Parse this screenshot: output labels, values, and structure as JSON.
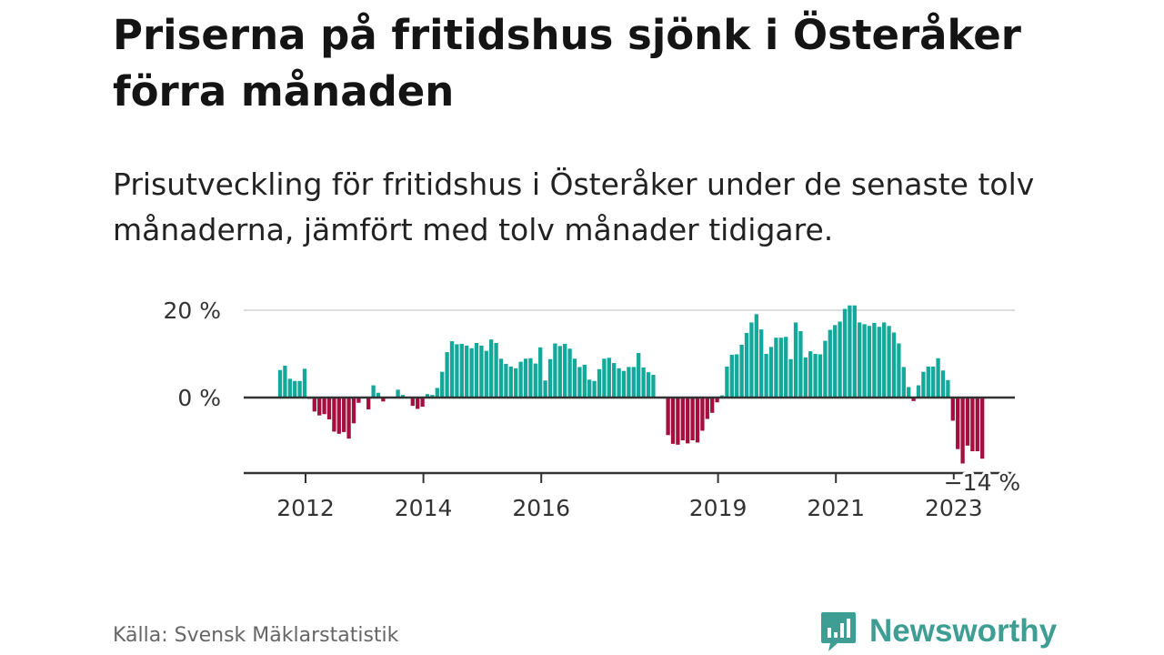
{
  "title": "Priserna på fritidshus sjönk i Österåker förra månaden",
  "subtitle": "Prisutveckling för fritidshus i Österåker under de senaste tolv månaderna, jämfört med tolv månader tidigare.",
  "source": "Källa: Svensk Mäklarstatistik",
  "brand": "Newsworthy",
  "colors": {
    "positive": "#12a89a",
    "negative": "#a50f3f",
    "brand": "#3f9e93",
    "gridline": "#dddddd",
    "zeroline": "#333333"
  },
  "chart_data": {
    "type": "bar",
    "title": "Priserna på fritidshus sjönk i Österåker förra månaden",
    "xlabel": "",
    "ylabel": "",
    "ylim": [
      -17,
      22
    ],
    "unit": "%",
    "start": "2011-08",
    "y_ticks": [
      {
        "value": 0,
        "label": "0 %"
      },
      {
        "value": 20,
        "label": "20 %"
      }
    ],
    "x_ticks": [
      {
        "index": 5,
        "label": "2012"
      },
      {
        "index": 29,
        "label": "2014"
      },
      {
        "index": 53,
        "label": "2016"
      },
      {
        "index": 89,
        "label": "2019"
      },
      {
        "index": 113,
        "label": "2021"
      },
      {
        "index": 137,
        "label": "2023"
      }
    ],
    "last_value_label": "−14 %",
    "values": [
      6.3,
      7.3,
      4.3,
      3.8,
      3.8,
      6.6,
      -0.3,
      -3.2,
      -4.1,
      -3.8,
      -5.0,
      -7.8,
      -8.3,
      -7.9,
      -9.4,
      -5.9,
      -1.2,
      0,
      -2.7,
      2.8,
      1.1,
      -0.9,
      0,
      0,
      1.8,
      0.6,
      0,
      -1.9,
      -2.6,
      -2.1,
      0.8,
      0.6,
      2.2,
      5.9,
      10.4,
      12.9,
      12.2,
      12.3,
      11.9,
      11.3,
      12.5,
      11.9,
      10.7,
      13.3,
      12.5,
      8.9,
      7.7,
      7.1,
      6.7,
      8.2,
      8.9,
      9.0,
      7.8,
      11.5,
      3.9,
      8.8,
      12.4,
      11.8,
      12.3,
      11.2,
      8.9,
      7.0,
      7.5,
      4.1,
      3.8,
      6.5,
      8.9,
      9.1,
      7.9,
      6.7,
      6.1,
      7.0,
      7.0,
      10.2,
      6.9,
      5.8,
      5.2,
      0,
      0,
      -8.6,
      -10.6,
      -10.8,
      -9.8,
      -10.5,
      -9.8,
      -10.3,
      -7.6,
      -4.9,
      -3.5,
      -1.1,
      0.5,
      7.1,
      9.8,
      9.9,
      12.1,
      14.8,
      17.2,
      19.1,
      15.6,
      10.0,
      11.6,
      13.7,
      13.7,
      13.9,
      8.8,
      17.2,
      15.2,
      9.2,
      10.6,
      10.0,
      9.9,
      13.0,
      15.5,
      16.6,
      17.4,
      20.3,
      21.1,
      21.1,
      17.2,
      16.8,
      16.4,
      17.1,
      16.2,
      17.2,
      16.4,
      14.9,
      12.4,
      7.0,
      2.4,
      -0.8,
      2.8,
      5.9,
      7.1,
      7.1,
      9.0,
      6.2,
      4.0,
      -5.3,
      -11.8,
      -15.1,
      -11.0,
      -12.3,
      -12.3,
      -14.0
    ]
  }
}
